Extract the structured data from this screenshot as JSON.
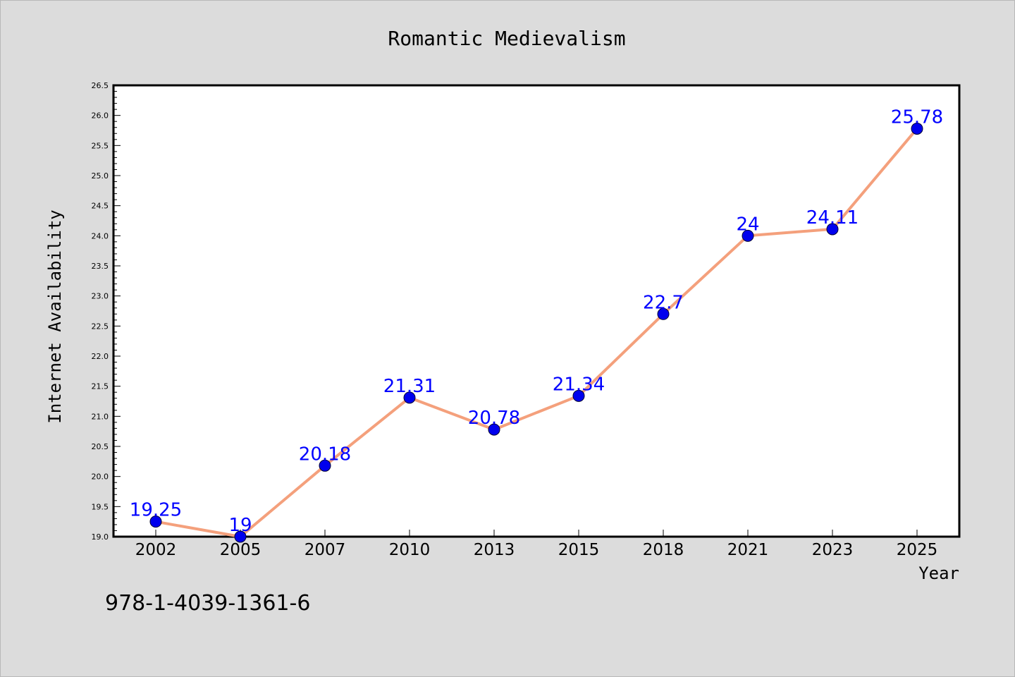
{
  "chart_data": {
    "type": "line",
    "title": "Romantic Medievalism",
    "xlabel": "Year",
    "ylabel": "Internet Availability",
    "annotation": "978-1-4039-1361-6",
    "x": [
      "2002",
      "2005",
      "2007",
      "2010",
      "2013",
      "2015",
      "2018",
      "2021",
      "2023",
      "2025"
    ],
    "values": [
      19.25,
      19,
      20.18,
      21.31,
      20.78,
      21.34,
      22.7,
      24,
      24.11,
      25.78
    ],
    "data_labels": [
      "19.25",
      "19",
      "20.18",
      "21.31",
      "20.78",
      "21.34",
      "22.7",
      "24",
      "24.11",
      "25.78"
    ],
    "ylim": [
      19.0,
      26.5
    ],
    "yticks": [
      "19.0",
      "19.5",
      "20.0",
      "20.5",
      "21.0",
      "21.5",
      "22.0",
      "22.5",
      "23.0",
      "23.5",
      "24.0",
      "24.5",
      "25.0",
      "25.5",
      "26.0",
      "26.5"
    ],
    "grid": false,
    "legend": "none",
    "colors": {
      "line": "#f4a07c",
      "marker": "#0000ee",
      "label": "#0000ff",
      "background": "#dcdcdc",
      "plot_background": "#ffffff"
    }
  }
}
